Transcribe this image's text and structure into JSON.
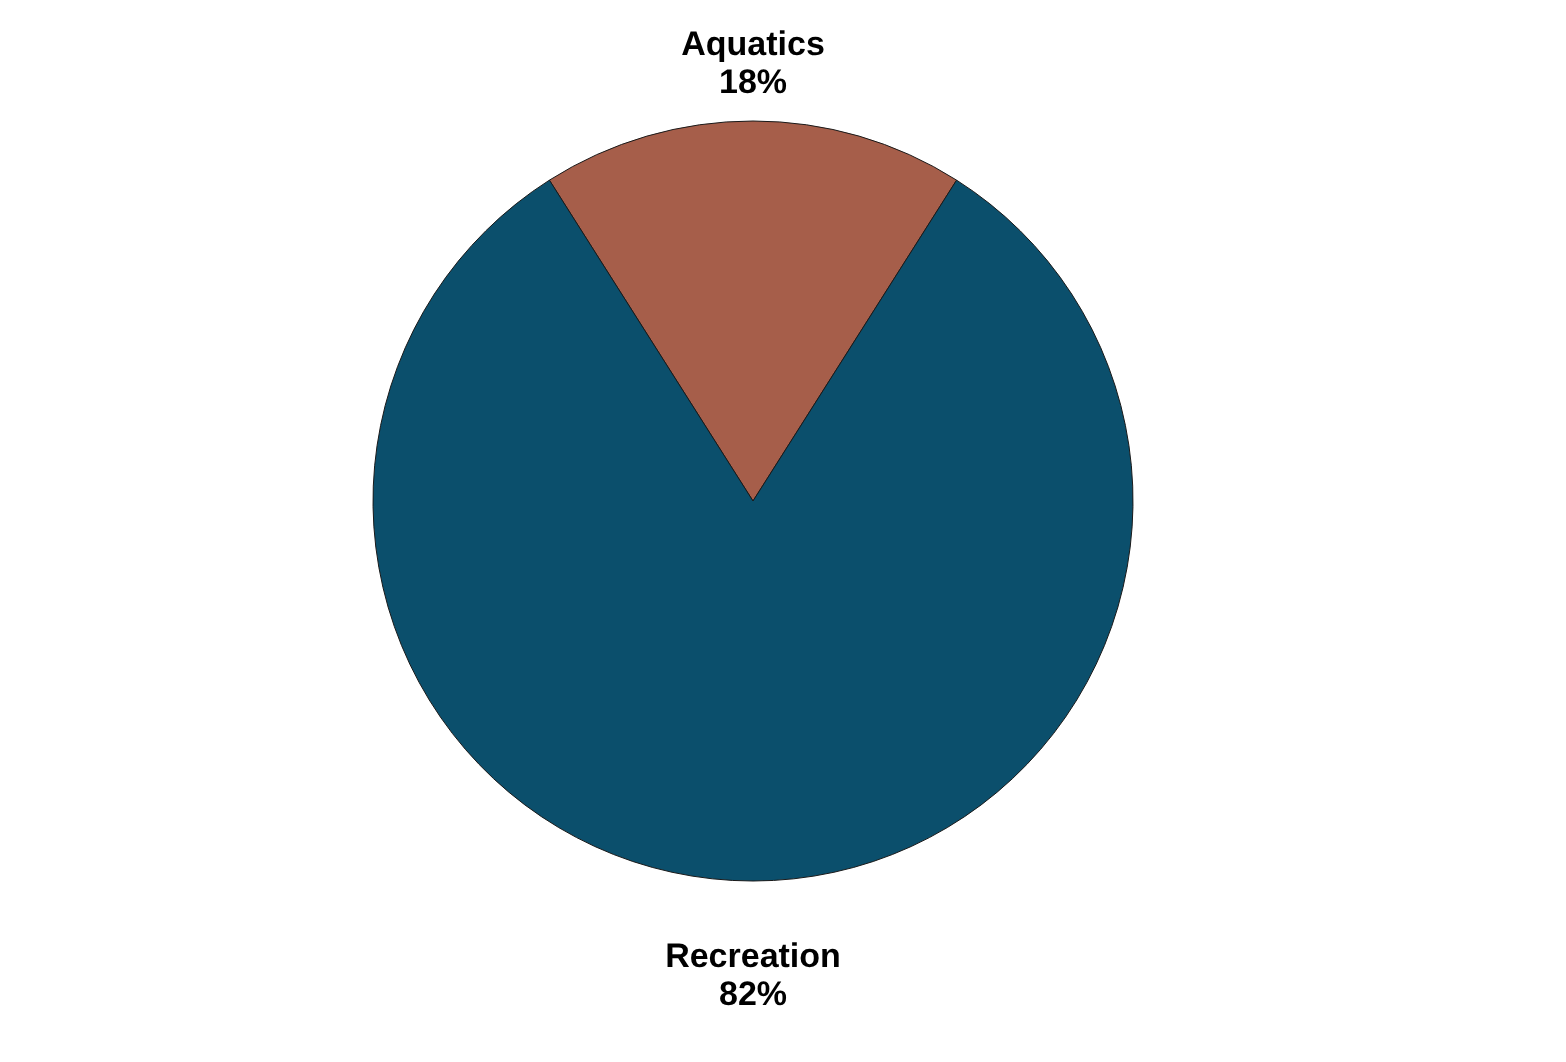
{
  "chart_data": {
    "type": "pie",
    "categories": [
      "Aquatics",
      "Recreation"
    ],
    "values": [
      18,
      82
    ],
    "colors": [
      "#a65e4a",
      "#0b4f6c"
    ],
    "value_labels": [
      "18%",
      "82%"
    ]
  }
}
